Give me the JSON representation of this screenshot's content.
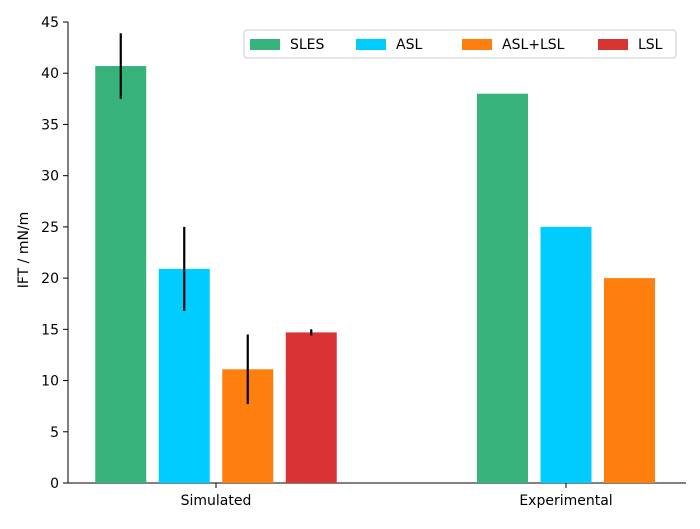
{
  "chart_data": {
    "type": "bar",
    "title": "",
    "xlabel": "",
    "ylabel": "IFT / mN/m",
    "ylim": [
      0,
      45
    ],
    "yticks": [
      0,
      5,
      10,
      15,
      20,
      25,
      30,
      35,
      40,
      45
    ],
    "categories": [
      "Simulated",
      "Experimental"
    ],
    "series": [
      {
        "name": "SLES",
        "color": "#36b37a",
        "values": [
          40.7,
          38.0
        ],
        "errors": [
          3.2,
          null
        ]
      },
      {
        "name": "ASL",
        "color": "#00ccff",
        "values": [
          20.9,
          25.0
        ],
        "errors": [
          4.1,
          null
        ]
      },
      {
        "name": "ASL+LSL",
        "color": "#ff7f0e",
        "values": [
          11.1,
          20.0
        ],
        "errors": [
          3.4,
          null
        ]
      },
      {
        "name": "LSL",
        "color": "#d93434",
        "values": [
          14.7,
          null
        ],
        "errors": [
          0.3,
          null
        ]
      }
    ],
    "legend": {
      "position": "top-right",
      "orientation": "horizontal"
    },
    "grid": false
  }
}
